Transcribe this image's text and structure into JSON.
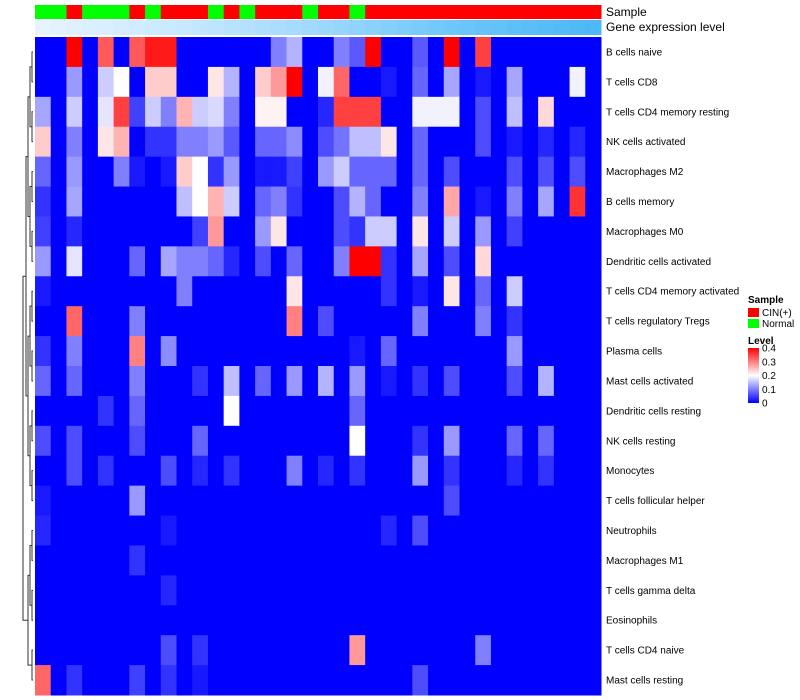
{
  "chart_data": {
    "type": "heatmap",
    "title": "",
    "annotation_tracks": [
      {
        "name": "Sample",
        "label": "Sample"
      },
      {
        "name": "Gene expression level",
        "label": "Gene expression level"
      }
    ],
    "sample_groups": [
      "N",
      "N",
      "C",
      "N",
      "N",
      "N",
      "C",
      "N",
      "C",
      "C",
      "C",
      "N",
      "C",
      "N",
      "C",
      "C",
      "C",
      "N",
      "C",
      "C",
      "N",
      "C",
      "C",
      "C",
      "C",
      "C",
      "C",
      "C",
      "C",
      "C",
      "C",
      "C",
      "C",
      "C",
      "C",
      "C"
    ],
    "sample_legend": {
      "title": "Sample",
      "entries": [
        {
          "key": "C",
          "label": "CIN(+)",
          "color": "#ff0000"
        },
        {
          "key": "N",
          "label": "Normal",
          "color": "#00ff00"
        }
      ]
    },
    "expression_gradient": [
      "#e6f4ff",
      "#c7e9ff",
      "#9fd8ff",
      "#6cc6fb",
      "#4cb8f7"
    ],
    "level_legend": {
      "title": "Level",
      "ticks": [
        "0.4",
        "0.3",
        "0.2",
        "0.1",
        "0"
      ],
      "tick_values": [
        0.4,
        0.3,
        0.2,
        0.1,
        0
      ],
      "range": [
        0,
        0.4
      ],
      "colors": {
        "low": "#0000ff",
        "mid": "#ffffff",
        "high": "#ff0000"
      }
    },
    "rows": [
      "B cells naive",
      "T cells CD8",
      "T cells CD4 memory resting",
      "NK cells activated",
      "Macrophages M2",
      "B cells memory",
      "Macrophages M0",
      "Dendritic cells activated",
      "T cells CD4 memory activated",
      "T cells regulatory  Tregs",
      "Plasma cells",
      "Mast cells activated",
      "Dendritic cells resting",
      "NK cells resting",
      "Monocytes",
      "T cells follicular helper",
      "Neutrophils",
      "Macrophages M1",
      "T cells gamma delta",
      "Eosinophils",
      "T cells CD4 naive",
      "Mast cells resting"
    ],
    "values": [
      [
        0.0,
        0.0,
        0.4,
        0.0,
        0.33,
        0.0,
        0.33,
        0.38,
        0.38,
        0.0,
        0.0,
        0.0,
        0.0,
        0.0,
        0.0,
        0.1,
        0.14,
        0.0,
        0.0,
        0.1,
        0.07,
        0.4,
        0.0,
        0.0,
        0.07,
        0.0,
        0.4,
        0.0,
        0.35,
        0.0,
        0.0,
        0.0,
        0.0,
        0.0,
        0.0,
        0.0
      ],
      [
        0.0,
        0.0,
        0.12,
        0.0,
        0.16,
        0.2,
        0.0,
        0.24,
        0.24,
        0.0,
        0.0,
        0.22,
        0.14,
        0.0,
        0.24,
        0.28,
        0.4,
        0.0,
        0.19,
        0.32,
        0.0,
        0.0,
        0.02,
        0.0,
        0.08,
        0.0,
        0.13,
        0.0,
        0.02,
        0.0,
        0.13,
        0.0,
        0.0,
        0.0,
        0.19,
        0.0
      ],
      [
        0.13,
        0.0,
        0.16,
        0.0,
        0.18,
        0.35,
        0.05,
        0.16,
        0.1,
        0.26,
        0.16,
        0.17,
        0.1,
        0.0,
        0.21,
        0.21,
        0.0,
        0.0,
        0.03,
        0.35,
        0.35,
        0.35,
        0.0,
        0.0,
        0.19,
        0.19,
        0.19,
        0.0,
        0.06,
        0.0,
        0.15,
        0.0,
        0.23,
        0.0,
        0.0,
        0.0
      ],
      [
        0.24,
        0.0,
        0.1,
        0.0,
        0.22,
        0.26,
        0.0,
        0.04,
        0.04,
        0.1,
        0.1,
        0.12,
        0.07,
        0.0,
        0.08,
        0.08,
        0.11,
        0.0,
        0.06,
        0.09,
        0.15,
        0.15,
        0.22,
        0.0,
        0.08,
        0.0,
        0.0,
        0.0,
        0.06,
        0.0,
        0.02,
        0.0,
        0.03,
        0.0,
        0.03,
        0.0
      ],
      [
        0.08,
        0.0,
        0.12,
        0.0,
        0.0,
        0.1,
        0.02,
        0.0,
        0.02,
        0.24,
        0.2,
        0.04,
        0.12,
        0.0,
        0.02,
        0.02,
        0.05,
        0.0,
        0.12,
        0.16,
        0.08,
        0.08,
        0.08,
        0.0,
        0.08,
        0.0,
        0.06,
        0.0,
        0.0,
        0.0,
        0.06,
        0.0,
        0.06,
        0.0,
        0.06,
        0.0
      ],
      [
        0.04,
        0.0,
        0.13,
        0.0,
        0.0,
        0.0,
        0.0,
        0.0,
        0.0,
        0.15,
        0.2,
        0.26,
        0.16,
        0.0,
        0.08,
        0.1,
        0.04,
        0.0,
        0.0,
        0.06,
        0.14,
        0.08,
        0.0,
        0.0,
        0.1,
        0.0,
        0.27,
        0.0,
        0.02,
        0.0,
        0.1,
        0.0,
        0.13,
        0.0,
        0.36,
        0.0
      ],
      [
        0.05,
        0.0,
        0.03,
        0.0,
        0.0,
        0.0,
        0.0,
        0.0,
        0.0,
        0.0,
        0.05,
        0.28,
        0.0,
        0.0,
        0.12,
        0.22,
        0.0,
        0.0,
        0.0,
        0.06,
        0.04,
        0.16,
        0.16,
        0.0,
        0.22,
        0.0,
        0.16,
        0.0,
        0.12,
        0.0,
        0.05,
        0.0,
        0.0,
        0.0,
        0.0,
        0.0
      ],
      [
        0.12,
        0.0,
        0.18,
        0.0,
        0.0,
        0.0,
        0.08,
        0.0,
        0.13,
        0.1,
        0.1,
        0.08,
        0.03,
        0.0,
        0.06,
        0.0,
        0.08,
        0.0,
        0.0,
        0.1,
        0.4,
        0.4,
        0.04,
        0.0,
        0.13,
        0.0,
        0.06,
        0.0,
        0.23,
        0.0,
        0.0,
        0.0,
        0.0,
        0.0,
        0.0,
        0.0
      ],
      [
        0.02,
        0.0,
        0.0,
        0.0,
        0.0,
        0.0,
        0.0,
        0.0,
        0.0,
        0.1,
        0.0,
        0.0,
        0.0,
        0.0,
        0.0,
        0.0,
        0.22,
        0.0,
        0.0,
        0.0,
        0.0,
        0.0,
        0.04,
        0.0,
        0.02,
        0.0,
        0.22,
        0.0,
        0.08,
        0.0,
        0.16,
        0.0,
        0.0,
        0.0,
        0.0,
        0.0
      ],
      [
        0.0,
        0.0,
        0.32,
        0.0,
        0.0,
        0.0,
        0.1,
        0.0,
        0.0,
        0.0,
        0.0,
        0.0,
        0.0,
        0.0,
        0.0,
        0.0,
        0.3,
        0.0,
        0.06,
        0.0,
        0.0,
        0.0,
        0.0,
        0.0,
        0.1,
        0.0,
        0.0,
        0.0,
        0.1,
        0.0,
        0.04,
        0.0,
        0.0,
        0.0,
        0.0,
        0.0
      ],
      [
        0.04,
        0.0,
        0.1,
        0.0,
        0.0,
        0.0,
        0.3,
        0.0,
        0.11,
        0.0,
        0.0,
        0.0,
        0.0,
        0.0,
        0.0,
        0.0,
        0.0,
        0.0,
        0.0,
        0.0,
        0.02,
        0.0,
        0.08,
        0.0,
        0.0,
        0.0,
        0.0,
        0.0,
        0.0,
        0.0,
        0.12,
        0.0,
        0.0,
        0.0,
        0.0,
        0.0
      ],
      [
        0.08,
        0.0,
        0.08,
        0.0,
        0.0,
        0.0,
        0.1,
        0.0,
        0.0,
        0.0,
        0.04,
        0.0,
        0.15,
        0.0,
        0.08,
        0.0,
        0.12,
        0.0,
        0.14,
        0.0,
        0.12,
        0.0,
        0.02,
        0.0,
        0.04,
        0.0,
        0.06,
        0.0,
        0.0,
        0.0,
        0.06,
        0.0,
        0.14,
        0.0,
        0.0,
        0.0
      ],
      [
        0.0,
        0.0,
        0.0,
        0.0,
        0.04,
        0.0,
        0.08,
        0.0,
        0.0,
        0.0,
        0.0,
        0.0,
        0.2,
        0.0,
        0.0,
        0.0,
        0.0,
        0.0,
        0.0,
        0.0,
        0.08,
        0.0,
        0.0,
        0.0,
        0.0,
        0.0,
        0.0,
        0.0,
        0.0,
        0.0,
        0.0,
        0.0,
        0.0,
        0.0,
        0.0,
        0.0
      ],
      [
        0.06,
        0.0,
        0.06,
        0.0,
        0.0,
        0.0,
        0.06,
        0.0,
        0.0,
        0.0,
        0.08,
        0.0,
        0.0,
        0.0,
        0.0,
        0.0,
        0.0,
        0.0,
        0.0,
        0.0,
        0.2,
        0.0,
        0.0,
        0.0,
        0.04,
        0.0,
        0.12,
        0.0,
        0.0,
        0.0,
        0.08,
        0.0,
        0.08,
        0.0,
        0.0,
        0.0
      ],
      [
        0.0,
        0.0,
        0.06,
        0.0,
        0.04,
        0.0,
        0.0,
        0.0,
        0.06,
        0.0,
        0.03,
        0.0,
        0.04,
        0.0,
        0.0,
        0.0,
        0.1,
        0.0,
        0.03,
        0.0,
        0.04,
        0.0,
        0.0,
        0.0,
        0.12,
        0.0,
        0.04,
        0.0,
        0.0,
        0.0,
        0.03,
        0.0,
        0.04,
        0.0,
        0.0,
        0.0
      ],
      [
        0.02,
        0.0,
        0.0,
        0.0,
        0.0,
        0.0,
        0.12,
        0.0,
        0.0,
        0.0,
        0.0,
        0.0,
        0.0,
        0.0,
        0.0,
        0.0,
        0.0,
        0.0,
        0.0,
        0.0,
        0.0,
        0.0,
        0.0,
        0.0,
        0.0,
        0.0,
        0.06,
        0.0,
        0.0,
        0.0,
        0.0,
        0.0,
        0.0,
        0.0,
        0.0,
        0.0
      ],
      [
        0.03,
        0.0,
        0.0,
        0.0,
        0.0,
        0.0,
        0.0,
        0.0,
        0.02,
        0.0,
        0.0,
        0.0,
        0.0,
        0.0,
        0.0,
        0.0,
        0.0,
        0.0,
        0.0,
        0.0,
        0.0,
        0.0,
        0.03,
        0.0,
        0.06,
        0.0,
        0.0,
        0.0,
        0.0,
        0.0,
        0.0,
        0.0,
        0.0,
        0.0,
        0.0,
        0.0
      ],
      [
        0.0,
        0.0,
        0.0,
        0.0,
        0.0,
        0.0,
        0.04,
        0.0,
        0.0,
        0.0,
        0.0,
        0.0,
        0.0,
        0.0,
        0.0,
        0.0,
        0.0,
        0.0,
        0.0,
        0.0,
        0.0,
        0.0,
        0.0,
        0.0,
        0.0,
        0.0,
        0.0,
        0.0,
        0.0,
        0.0,
        0.0,
        0.0,
        0.0,
        0.0,
        0.0,
        0.0
      ],
      [
        0.0,
        0.0,
        0.0,
        0.0,
        0.0,
        0.0,
        0.0,
        0.0,
        0.03,
        0.0,
        0.0,
        0.0,
        0.0,
        0.0,
        0.0,
        0.0,
        0.0,
        0.0,
        0.0,
        0.0,
        0.0,
        0.0,
        0.0,
        0.0,
        0.0,
        0.0,
        0.0,
        0.0,
        0.0,
        0.0,
        0.0,
        0.0,
        0.0,
        0.0,
        0.0,
        0.0
      ],
      [
        0.0,
        0.0,
        0.0,
        0.0,
        0.0,
        0.0,
        0.0,
        0.0,
        0.0,
        0.0,
        0.0,
        0.0,
        0.0,
        0.0,
        0.0,
        0.0,
        0.0,
        0.0,
        0.0,
        0.0,
        0.0,
        0.0,
        0.0,
        0.0,
        0.0,
        0.0,
        0.0,
        0.0,
        0.0,
        0.0,
        0.0,
        0.0,
        0.0,
        0.0,
        0.0,
        0.0
      ],
      [
        0.0,
        0.0,
        0.0,
        0.0,
        0.0,
        0.0,
        0.0,
        0.0,
        0.06,
        0.0,
        0.04,
        0.0,
        0.0,
        0.0,
        0.0,
        0.0,
        0.0,
        0.0,
        0.0,
        0.0,
        0.28,
        0.0,
        0.0,
        0.0,
        0.0,
        0.0,
        0.0,
        0.0,
        0.1,
        0.0,
        0.0,
        0.0,
        0.0,
        0.0,
        0.0,
        0.0
      ],
      [
        0.32,
        0.0,
        0.04,
        0.0,
        0.0,
        0.0,
        0.05,
        0.0,
        0.04,
        0.0,
        0.02,
        0.0,
        0.0,
        0.0,
        0.0,
        0.0,
        0.0,
        0.0,
        0.0,
        0.0,
        0.0,
        0.0,
        0.0,
        0.0,
        0.06,
        0.0,
        0.0,
        0.0,
        0.0,
        0.0,
        0.0,
        0.0,
        0.0,
        0.0,
        0.0,
        0.0
      ]
    ]
  }
}
